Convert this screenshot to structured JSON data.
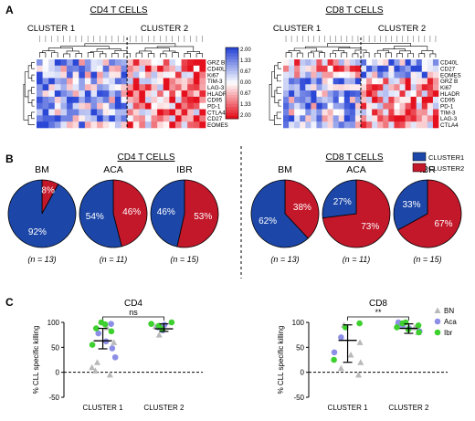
{
  "chart_data": [
    {
      "type": "heatmap",
      "panel": "A",
      "title": "CD4 T CELLS",
      "clusters": [
        "CLUSTER 1",
        "CLUSTER 2"
      ],
      "rows": [
        "GRZ B",
        "CD40L",
        "Ki67",
        "TIM-3",
        "LAG-3",
        "HLADR",
        "CD95",
        "PD-1",
        "CTLA4",
        "CD27",
        "EOMES"
      ],
      "scale": {
        "ticks": [
          "2.00",
          "1.33",
          "0.67",
          "0.00",
          "0.67",
          "1.33",
          "2.00"
        ],
        "low_color": "#2b47d6",
        "mid_color": "#ffffff",
        "high_color": "#e5101d"
      }
    },
    {
      "type": "heatmap",
      "panel": "A",
      "title": "CD8 T CELLS",
      "clusters": [
        "CLUSTER 1",
        "CLUSTER 2"
      ],
      "rows": [
        "CD40L",
        "CD27",
        "EOMES",
        "GRZ B",
        "Ki67",
        "HLADR",
        "CD95",
        "PD-1",
        "TIM-3",
        "LAG-3",
        "CTLA4"
      ]
    },
    {
      "type": "pie",
      "panel": "B",
      "group": "CD4 T CELLS",
      "pies": [
        {
          "label": "BM",
          "n": "(n = 13)",
          "cluster1": 92,
          "cluster2": 8
        },
        {
          "label": "ACA",
          "n": "(n = 11)",
          "cluster1": 54,
          "cluster2": 46
        },
        {
          "label": "IBR",
          "n": "(n = 15)",
          "cluster1": 46,
          "cluster2": 53
        }
      ],
      "legend": [
        "CLUSTER1",
        "CLUSTER2"
      ],
      "colors": {
        "cluster1": "#1c47a8",
        "cluster2": "#c3172a"
      }
    },
    {
      "type": "pie",
      "panel": "B",
      "group": "CD8 T CELLS",
      "pies": [
        {
          "label": "BM",
          "n": "(n = 13)",
          "cluster1": 62,
          "cluster2": 38
        },
        {
          "label": "ACA",
          "n": "(n = 11)",
          "cluster1": 27,
          "cluster2": 73
        },
        {
          "label": "IBR",
          "n": "(n = 15)",
          "cluster1": 33,
          "cluster2": 67
        }
      ]
    },
    {
      "type": "scatter",
      "panel": "C",
      "title": "CD4",
      "ylabel": "% CLL specific killing",
      "ylim": [
        -50,
        100
      ],
      "yticks": [
        -50,
        0,
        50,
        100
      ],
      "categories": [
        "CLUSTER 1",
        "CLUSTER 2"
      ],
      "significance": "ns",
      "summary": [
        {
          "mean": 63,
          "sd_low": 47,
          "sd_high": 88
        },
        {
          "mean": 87,
          "sd_low": 82,
          "sd_high": 97
        }
      ],
      "series": [
        {
          "name": "BN",
          "points": [
            {
              "cat": 0,
              "y": 90
            },
            {
              "cat": 0,
              "y": 60
            },
            {
              "cat": 0,
              "y": 20
            },
            {
              "cat": 0,
              "y": 10
            },
            {
              "cat": 0,
              "y": 3
            },
            {
              "cat": 0,
              "y": -5
            },
            {
              "cat": 1,
              "y": 92
            },
            {
              "cat": 1,
              "y": 75
            }
          ]
        },
        {
          "name": "Aca",
          "points": [
            {
              "cat": 0,
              "y": 97
            },
            {
              "cat": 0,
              "y": 78
            },
            {
              "cat": 0,
              "y": 62
            },
            {
              "cat": 0,
              "y": 48
            },
            {
              "cat": 0,
              "y": 30
            },
            {
              "cat": 1,
              "y": 95
            },
            {
              "cat": 1,
              "y": 90
            },
            {
              "cat": 1,
              "y": 84
            }
          ]
        },
        {
          "name": "Ibr",
          "points": [
            {
              "cat": 0,
              "y": 100
            },
            {
              "cat": 0,
              "y": 96
            },
            {
              "cat": 0,
              "y": 88
            },
            {
              "cat": 0,
              "y": 82
            },
            {
              "cat": 0,
              "y": 55
            },
            {
              "cat": 1,
              "y": 100
            },
            {
              "cat": 1,
              "y": 97
            },
            {
              "cat": 1,
              "y": 93
            },
            {
              "cat": 1,
              "y": 86
            }
          ]
        }
      ]
    },
    {
      "type": "scatter",
      "panel": "C",
      "title": "CD8",
      "ylabel": "% CLL specific killing",
      "ylim": [
        -50,
        100
      ],
      "yticks": [
        -50,
        0,
        50,
        100
      ],
      "categories": [
        "CLUSTER 1",
        "CLUSTER 2"
      ],
      "significance": "**",
      "summary": [
        {
          "mean": 64,
          "sd_low": 20,
          "sd_high": 95
        },
        {
          "mean": 88,
          "sd_low": 78,
          "sd_high": 97
        }
      ],
      "series": [
        {
          "name": "BN",
          "points": [
            {
              "cat": 0,
              "y": 95
            },
            {
              "cat": 0,
              "y": 60
            },
            {
              "cat": 0,
              "y": 35
            },
            {
              "cat": 0,
              "y": 20
            },
            {
              "cat": 0,
              "y": 8
            },
            {
              "cat": 0,
              "y": -5
            },
            {
              "cat": 1,
              "y": 90
            },
            {
              "cat": 1,
              "y": 80
            }
          ]
        },
        {
          "name": "Aca",
          "points": [
            {
              "cat": 0,
              "y": 70
            },
            {
              "cat": 0,
              "y": 40
            },
            {
              "cat": 1,
              "y": 100
            },
            {
              "cat": 1,
              "y": 97
            },
            {
              "cat": 1,
              "y": 93
            },
            {
              "cat": 1,
              "y": 88
            },
            {
              "cat": 1,
              "y": 82
            }
          ]
        },
        {
          "name": "Ibr",
          "points": [
            {
              "cat": 0,
              "y": 98
            },
            {
              "cat": 0,
              "y": 90
            },
            {
              "cat": 0,
              "y": 25
            },
            {
              "cat": 1,
              "y": 100
            },
            {
              "cat": 1,
              "y": 98
            },
            {
              "cat": 1,
              "y": 94
            },
            {
              "cat": 1,
              "y": 90
            },
            {
              "cat": 1,
              "y": 86
            },
            {
              "cat": 1,
              "y": 80
            }
          ]
        }
      ],
      "legend": [
        {
          "name": "BN",
          "marker": "triangle",
          "color": "#b9b9b9"
        },
        {
          "name": "Aca",
          "marker": "circle",
          "color": "#8d8fe6"
        },
        {
          "name": "Ibr",
          "marker": "circle",
          "color": "#3ed02f"
        }
      ]
    }
  ],
  "panel_labels": [
    "A",
    "B",
    "C"
  ]
}
